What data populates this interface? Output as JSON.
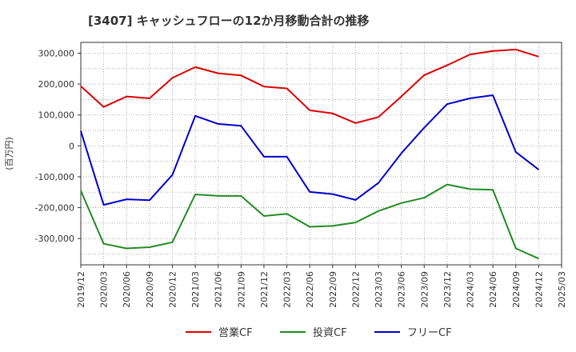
{
  "chart_data": {
    "type": "line",
    "title": "[3407]  キャッシュフローの12か月移動合計の推移",
    "ylabel": "(百万円)",
    "xlabel": "",
    "ylim": [
      -385000,
      335000
    ],
    "yticks": [
      300000,
      200000,
      100000,
      0,
      -100000,
      -200000,
      -300000
    ],
    "ytick_labels": [
      "300,000",
      "200,000",
      "100,000",
      "0",
      "-100,000",
      "-200,000",
      "-300,000"
    ],
    "categories": [
      "2019/12",
      "2020/03",
      "2020/06",
      "2020/09",
      "2020/12",
      "2021/03",
      "2021/06",
      "2021/09",
      "2021/12",
      "2022/03",
      "2022/06",
      "2022/09",
      "2022/12",
      "2023/03",
      "2023/06",
      "2023/09",
      "2023/12",
      "2024/03",
      "2024/06",
      "2024/09",
      "2024/12",
      "2025/03"
    ],
    "grid": true,
    "legend_position": "bottom",
    "series": [
      {
        "name": "営業CF",
        "color": "#dd0000",
        "values": [
          193000,
          126000,
          160000,
          154000,
          220000,
          255000,
          235000,
          228000,
          192000,
          186000,
          115000,
          105000,
          74000,
          93000,
          160000,
          229000,
          261000,
          296000,
          307000,
          312000,
          289000,
          null
        ]
      },
      {
        "name": "投資CF",
        "color": "#228b22",
        "values": [
          -145000,
          -317000,
          -332000,
          -328000,
          -312000,
          -157000,
          -162000,
          -162000,
          -227000,
          -220000,
          -262000,
          -259000,
          -248000,
          -211000,
          -185000,
          -168000,
          -125000,
          -140000,
          -142000,
          -332000,
          -365000,
          null
        ]
      },
      {
        "name": "フリーCF",
        "color": "#0000cc",
        "values": [
          48000,
          -191000,
          -173000,
          -176000,
          -94000,
          97000,
          71000,
          65000,
          -35000,
          -35000,
          -149000,
          -156000,
          -175000,
          -120000,
          -24000,
          59000,
          135000,
          154000,
          164000,
          -20000,
          -77000,
          null
        ]
      }
    ]
  }
}
